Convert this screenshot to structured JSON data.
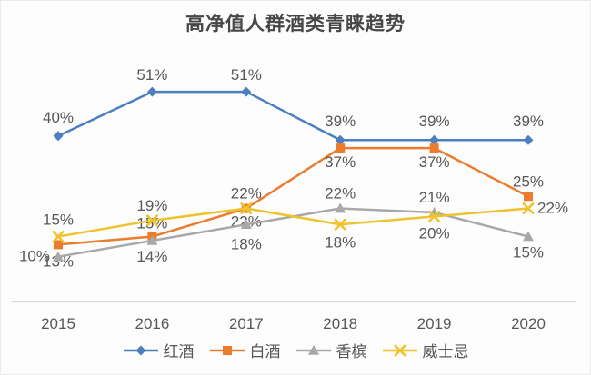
{
  "chart_data": {
    "type": "line",
    "title": "高净值人群酒类青睐趋势",
    "categories": [
      "2015",
      "2016",
      "2017",
      "2018",
      "2019",
      "2020"
    ],
    "series": [
      {
        "id": "red-wine",
        "name": "红酒",
        "color": "#4d7ebf",
        "marker": "diamond",
        "values": [
          40,
          51,
          51,
          39,
          39,
          39
        ]
      },
      {
        "id": "baijiu",
        "name": "白酒",
        "color": "#ea7c2e",
        "marker": "square",
        "values": [
          13,
          15,
          22,
          37,
          37,
          25
        ]
      },
      {
        "id": "champagne",
        "name": "香槟",
        "color": "#a8a8a8",
        "marker": "triangle",
        "values": [
          10,
          14,
          18,
          22,
          21,
          15
        ]
      },
      {
        "id": "whisky",
        "name": "威士忌",
        "color": "#eec32f",
        "marker": "x",
        "values": [
          15,
          19,
          22,
          18,
          20,
          22
        ]
      }
    ],
    "value_suffix": "%",
    "ylim": [
      0,
      60
    ],
    "grid": false,
    "legend_position": "bottom",
    "data_labels": true,
    "axis_color": "#d9d9d9",
    "label_color": "#585858",
    "title_color": "#474747"
  }
}
